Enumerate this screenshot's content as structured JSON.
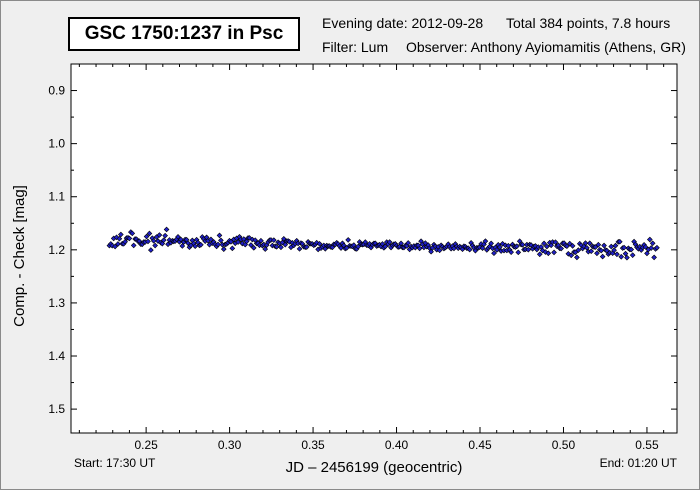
{
  "header": {
    "star_name": "GSC 1750:1237 in Psc",
    "evening_date": "Evening date: 2012-09-28",
    "total": "Total 384 points, 7.8 hours",
    "filter": "Filter: Lum",
    "observer": "Observer: Anthony Ayiomamitis (Athens, GR)"
  },
  "footer": {
    "start": "Start: 17:30 UT",
    "end": "End: 01:20 UT"
  },
  "chart_data": {
    "type": "scatter",
    "xlabel": "JD – 2456199  (geocentric)",
    "ylabel": "Comp. - Check [mag]",
    "xlim": [
      0.205,
      0.568
    ],
    "ylim": [
      0.85,
      1.545
    ],
    "y_inverted": true,
    "x_ticks": [
      0.25,
      0.3,
      0.35,
      0.4,
      0.45,
      0.5,
      0.55
    ],
    "x_tick_labels": [
      "0.25",
      "0.30",
      "0.35",
      "0.40",
      "0.45",
      "0.50",
      "0.55"
    ],
    "y_ticks": [
      0.9,
      1.0,
      1.1,
      1.2,
      1.3,
      1.4,
      1.5
    ],
    "y_tick_labels": [
      "0.9",
      "1.0",
      "1.1",
      "1.2",
      "1.3",
      "1.4",
      "1.5"
    ],
    "grid": false,
    "marker_color": "#2020c8",
    "marker_edge_color": "#000000",
    "x_range": [
      0.228,
      0.556
    ],
    "n_points": 384,
    "trend": [
      {
        "x": 0.228,
        "y": 1.182
      },
      {
        "x": 0.25,
        "y": 1.181
      },
      {
        "x": 0.3,
        "y": 1.186
      },
      {
        "x": 0.35,
        "y": 1.19
      },
      {
        "x": 0.4,
        "y": 1.193
      },
      {
        "x": 0.45,
        "y": 1.195
      },
      {
        "x": 0.5,
        "y": 1.197
      },
      {
        "x": 0.556,
        "y": 1.198
      }
    ],
    "scatter_amplitude": [
      {
        "x": 0.228,
        "a": 0.018
      },
      {
        "x": 0.3,
        "a": 0.01
      },
      {
        "x": 0.4,
        "a": 0.006
      },
      {
        "x": 0.47,
        "a": 0.01
      },
      {
        "x": 0.556,
        "a": 0.016
      }
    ]
  }
}
